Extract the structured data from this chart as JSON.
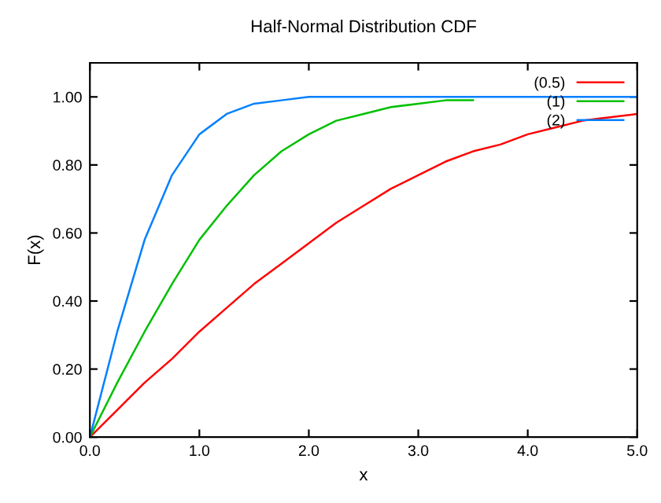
{
  "chart_data": {
    "type": "line",
    "title": "Half-Normal Distribution CDF",
    "xlabel": "x",
    "ylabel": "F(x)",
    "x": [
      0,
      0.25,
      0.5,
      0.75,
      1,
      1.25,
      1.5,
      1.75,
      2,
      2.25,
      2.5,
      2.75,
      3,
      3.25,
      3.5,
      3.75,
      4,
      4.25,
      4.5,
      4.75,
      5
    ],
    "series": [
      {
        "name": "(0.5)",
        "color": "#ff0000",
        "values": [
          0,
          0.08,
          0.16,
          0.23,
          0.31,
          0.38,
          0.45,
          0.51,
          0.57,
          0.63,
          0.68,
          0.73,
          0.77,
          0.81,
          0.84,
          0.86,
          0.89,
          0.91,
          0.93,
          0.94,
          0.95
        ]
      },
      {
        "name": "(1)",
        "color": "#00c000",
        "values": [
          0,
          0.16,
          0.31,
          0.45,
          0.58,
          0.68,
          0.77,
          0.84,
          0.89,
          0.93,
          0.95,
          0.97,
          0.98,
          0.99,
          0.99,
          null,
          null,
          null,
          null,
          null,
          null
        ]
      },
      {
        "name": "(2)",
        "color": "#0080ff",
        "values": [
          0,
          0.31,
          0.58,
          0.77,
          0.89,
          0.95,
          0.98,
          0.99,
          1.0,
          1.0,
          1.0,
          1.0,
          1.0,
          1.0,
          1.0,
          1.0,
          1.0,
          1.0,
          1.0,
          1.0,
          1.0
        ]
      }
    ],
    "xlim": [
      0,
      5
    ],
    "ylim": [
      0,
      1.1
    ],
    "xticks": [
      {
        "value": 0,
        "label": "0.0"
      },
      {
        "value": 1,
        "label": "1.0"
      },
      {
        "value": 2,
        "label": "2.0"
      },
      {
        "value": 3,
        "label": "3.0"
      },
      {
        "value": 4,
        "label": "4.0"
      },
      {
        "value": 5,
        "label": "5.0"
      }
    ],
    "yticks": [
      {
        "value": 0,
        "label": "0.00"
      },
      {
        "value": 0.2,
        "label": "0.20"
      },
      {
        "value": 0.4,
        "label": "0.40"
      },
      {
        "value": 0.6,
        "label": "0.60"
      },
      {
        "value": 0.8,
        "label": "0.80"
      },
      {
        "value": 1,
        "label": "1.00"
      }
    ],
    "grid": false,
    "legend": "top right",
    "marker": "none",
    "line_style": "solid"
  }
}
